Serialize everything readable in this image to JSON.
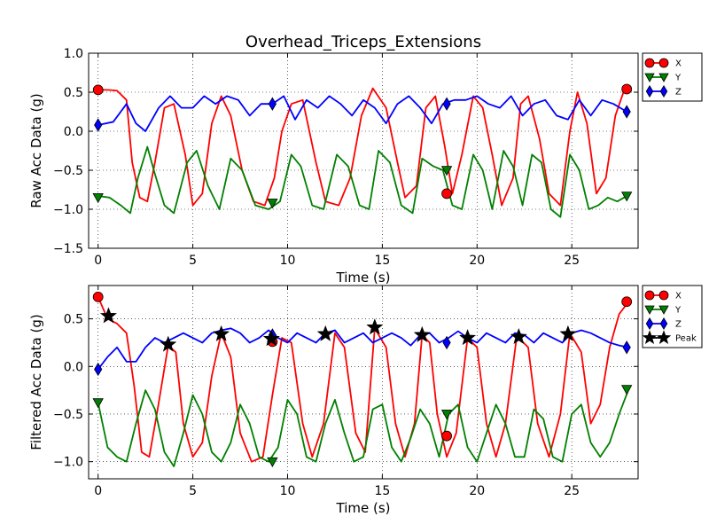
{
  "title": "Overhead_Triceps_Extensions",
  "colors": {
    "x": "#ff0000",
    "y": "#008000",
    "z": "#0000ff",
    "peak": "#000000"
  },
  "chart_data": [
    {
      "type": "line",
      "xlabel": "Time (s)",
      "ylabel": "Raw Acc Data (g)",
      "xlim": [
        -0.5,
        28.5
      ],
      "ylim": [
        -1.5,
        1.0
      ],
      "xticks": [
        0,
        5,
        10,
        15,
        20,
        25
      ],
      "yticks": [
        -1.5,
        -1.0,
        -0.5,
        0.0,
        0.5,
        1.0
      ],
      "xtick_labels": [
        "0",
        "5",
        "10",
        "15",
        "20",
        "25"
      ],
      "ytick_labels": [
        "−1.5",
        "−1.0",
        "−0.5",
        "0.0",
        "0.5",
        "1.0"
      ],
      "grid": true,
      "legend": {
        "placement": "outside-right-top",
        "entries": [
          "X",
          "Y",
          "Z"
        ]
      },
      "series": [
        {
          "name": "X",
          "color": "#ff0000",
          "marker": "circle",
          "x": [
            0,
            0.5,
            1.0,
            1.5,
            1.8,
            2.2,
            2.6,
            3.0,
            3.5,
            4.0,
            4.6,
            5.0,
            5.5,
            6.0,
            6.5,
            7.0,
            7.6,
            8.2,
            8.8,
            9.3,
            9.7,
            10.2,
            10.8,
            11.5,
            12.0,
            12.7,
            13.3,
            13.9,
            14.5,
            15.2,
            15.8,
            16.2,
            16.8,
            17.3,
            17.8,
            18.3,
            18.7,
            19.2,
            19.8,
            20.3,
            20.8,
            21.3,
            21.9,
            22.3,
            22.7,
            23.3,
            23.8,
            24.4,
            24.9,
            25.3,
            25.8,
            26.3,
            26.8,
            27.3,
            27.8,
            28.0
          ],
          "y": [
            0.53,
            0.53,
            0.52,
            0.4,
            -0.4,
            -0.85,
            -0.9,
            -0.4,
            0.3,
            0.35,
            -0.3,
            -0.95,
            -0.8,
            0.1,
            0.45,
            0.2,
            -0.5,
            -0.9,
            -0.95,
            -0.6,
            0.0,
            0.35,
            0.4,
            -0.4,
            -0.9,
            -0.95,
            -0.6,
            0.2,
            0.55,
            0.3,
            -0.4,
            -0.85,
            -0.7,
            0.3,
            0.45,
            -0.2,
            -0.8,
            -0.3,
            0.45,
            0.3,
            -0.3,
            -0.95,
            -0.6,
            0.35,
            0.45,
            -0.1,
            -0.8,
            -0.95,
            0.0,
            0.5,
            0.1,
            -0.8,
            -0.6,
            0.2,
            0.55,
            0.54
          ],
          "markers": [
            [
              0,
              0.53
            ],
            [
              18.4,
              -0.8
            ],
            [
              27.9,
              0.54
            ]
          ]
        },
        {
          "name": "Y",
          "color": "#008000",
          "marker": "triangle-down",
          "x": [
            0,
            0.6,
            1.2,
            1.7,
            2.1,
            2.6,
            3.0,
            3.5,
            4.0,
            4.7,
            5.2,
            5.8,
            6.4,
            7.0,
            7.6,
            8.3,
            9.0,
            9.6,
            10.2,
            10.7,
            11.3,
            11.9,
            12.6,
            13.2,
            13.8,
            14.3,
            14.8,
            15.4,
            16.0,
            16.6,
            17.1,
            17.7,
            18.2,
            18.7,
            19.2,
            19.8,
            20.3,
            20.8,
            21.4,
            21.9,
            22.4,
            22.9,
            23.4,
            23.9,
            24.4,
            24.9,
            25.4,
            25.9,
            26.4,
            26.9,
            27.4,
            27.9
          ],
          "y": [
            -0.83,
            -0.85,
            -0.95,
            -1.05,
            -0.6,
            -0.2,
            -0.55,
            -0.95,
            -1.05,
            -0.4,
            -0.25,
            -0.7,
            -1.0,
            -0.35,
            -0.5,
            -0.95,
            -1.0,
            -0.9,
            -0.3,
            -0.45,
            -0.95,
            -1.0,
            -0.3,
            -0.45,
            -0.95,
            -1.0,
            -0.25,
            -0.4,
            -0.95,
            -1.05,
            -0.35,
            -0.45,
            -0.5,
            -0.95,
            -1.0,
            -0.3,
            -0.5,
            -1.0,
            -0.25,
            -0.45,
            -0.95,
            -0.3,
            -0.4,
            -1.0,
            -1.1,
            -0.3,
            -0.5,
            -1.0,
            -0.95,
            -0.85,
            -0.9,
            -0.83
          ],
          "markers": [
            [
              0,
              -0.85
            ],
            [
              9.2,
              -0.92
            ],
            [
              18.4,
              -0.5
            ],
            [
              27.9,
              -0.83
            ]
          ]
        },
        {
          "name": "Z",
          "color": "#0000ff",
          "marker": "diamond",
          "x": [
            0,
            0.8,
            1.5,
            2.0,
            2.5,
            3.2,
            3.8,
            4.4,
            5.0,
            5.6,
            6.2,
            6.8,
            7.4,
            8.0,
            8.6,
            9.2,
            9.8,
            10.4,
            11.0,
            11.6,
            12.2,
            12.8,
            13.4,
            14.0,
            14.6,
            15.2,
            15.8,
            16.4,
            17.0,
            17.6,
            18.2,
            18.8,
            19.4,
            20.0,
            20.6,
            21.2,
            21.8,
            22.4,
            23.0,
            23.6,
            24.2,
            24.8,
            25.4,
            26.0,
            26.6,
            27.2,
            27.9
          ],
          "y": [
            0.08,
            0.12,
            0.35,
            0.1,
            0.0,
            0.3,
            0.45,
            0.3,
            0.3,
            0.45,
            0.35,
            0.45,
            0.4,
            0.2,
            0.35,
            0.35,
            0.45,
            0.15,
            0.4,
            0.3,
            0.45,
            0.35,
            0.2,
            0.4,
            0.3,
            0.1,
            0.35,
            0.45,
            0.3,
            0.1,
            0.35,
            0.4,
            0.4,
            0.45,
            0.35,
            0.3,
            0.45,
            0.2,
            0.35,
            0.4,
            0.2,
            0.15,
            0.4,
            0.2,
            0.4,
            0.35,
            0.25
          ],
          "markers": [
            [
              0,
              0.08
            ],
            [
              9.2,
              0.35
            ],
            [
              18.4,
              0.35
            ],
            [
              27.9,
              0.25
            ]
          ]
        }
      ]
    },
    {
      "type": "line",
      "xlabel": "Time (s)",
      "ylabel": "Filtered Acc Data (g)",
      "xlim": [
        -0.5,
        28.5
      ],
      "ylim": [
        -1.18,
        0.85
      ],
      "xticks": [
        0,
        5,
        10,
        15,
        20,
        25
      ],
      "yticks": [
        -1.0,
        -0.5,
        0.0,
        0.5
      ],
      "xtick_labels": [
        "0",
        "5",
        "10",
        "15",
        "20",
        "25"
      ],
      "ytick_labels": [
        "−1.0",
        "−0.5",
        "0.0",
        "0.5"
      ],
      "grid": true,
      "legend": {
        "placement": "outside-right-top",
        "entries": [
          "X",
          "Y",
          "Z",
          "Peak"
        ]
      },
      "series": [
        {
          "name": "X",
          "color": "#ff0000",
          "marker": "circle",
          "x": [
            0,
            0.5,
            1.0,
            1.5,
            1.9,
            2.3,
            2.7,
            3.1,
            3.7,
            4.1,
            4.5,
            5.0,
            5.5,
            6.0,
            6.5,
            7.0,
            7.5,
            8.1,
            8.7,
            9.2,
            9.7,
            10.2,
            10.8,
            11.3,
            11.9,
            12.5,
            13.0,
            13.6,
            14.1,
            14.6,
            15.2,
            15.7,
            16.2,
            16.7,
            17.1,
            17.5,
            17.9,
            18.4,
            18.9,
            19.5,
            20.0,
            20.5,
            21.0,
            21.5,
            22.1,
            22.7,
            23.2,
            23.8,
            24.4,
            24.9,
            25.5,
            26.0,
            26.5,
            27.0,
            27.5,
            28.0
          ],
          "y": [
            0.73,
            0.5,
            0.45,
            0.35,
            -0.2,
            -0.9,
            -0.95,
            -0.5,
            0.22,
            0.15,
            -0.6,
            -0.95,
            -0.8,
            -0.1,
            0.35,
            0.1,
            -0.7,
            -1.0,
            -0.95,
            -0.3,
            0.3,
            0.25,
            -0.6,
            -0.95,
            -0.6,
            0.35,
            0.2,
            -0.7,
            -0.9,
            0.4,
            0.2,
            -0.6,
            -0.95,
            -0.6,
            0.33,
            0.25,
            -0.5,
            -0.95,
            -0.7,
            0.3,
            0.2,
            -0.6,
            -0.95,
            -0.6,
            0.32,
            0.2,
            -0.6,
            -0.95,
            -0.5,
            0.35,
            0.15,
            -0.6,
            -0.4,
            0.2,
            0.55,
            0.68
          ],
          "markers": [
            [
              0,
              0.73
            ],
            [
              9.2,
              0.26
            ],
            [
              18.4,
              -0.73
            ],
            [
              27.9,
              0.68
            ]
          ]
        },
        {
          "name": "Y",
          "color": "#008000",
          "marker": "triangle-down",
          "x": [
            0,
            0.5,
            1.0,
            1.5,
            2.0,
            2.5,
            3.0,
            3.5,
            4.0,
            4.5,
            5.0,
            5.5,
            6.0,
            6.5,
            7.0,
            7.5,
            8.0,
            8.5,
            9.0,
            9.5,
            10.0,
            10.5,
            11.0,
            11.5,
            12.0,
            12.5,
            13.0,
            13.5,
            14.0,
            14.5,
            15.0,
            15.5,
            16.0,
            16.5,
            17.0,
            17.5,
            18.0,
            18.5,
            19.0,
            19.5,
            20.0,
            20.5,
            21.0,
            21.5,
            22.0,
            22.5,
            23.0,
            23.5,
            24.0,
            24.5,
            25.0,
            25.5,
            26.0,
            26.5,
            27.0,
            27.5,
            28.0
          ],
          "y": [
            -0.38,
            -0.85,
            -0.95,
            -1.0,
            -0.6,
            -0.25,
            -0.45,
            -0.9,
            -1.05,
            -0.7,
            -0.3,
            -0.5,
            -0.9,
            -1.0,
            -0.8,
            -0.4,
            -0.6,
            -0.95,
            -1.0,
            -0.85,
            -0.35,
            -0.5,
            -0.95,
            -1.0,
            -0.6,
            -0.35,
            -0.7,
            -1.0,
            -0.95,
            -0.45,
            -0.4,
            -0.85,
            -1.0,
            -0.75,
            -0.45,
            -0.6,
            -0.95,
            -0.5,
            -0.4,
            -0.85,
            -1.0,
            -0.7,
            -0.4,
            -0.6,
            -0.95,
            -0.95,
            -0.45,
            -0.55,
            -0.95,
            -1.0,
            -0.5,
            -0.4,
            -0.8,
            -0.95,
            -0.8,
            -0.5,
            -0.24
          ],
          "markers": [
            [
              0,
              -0.38
            ],
            [
              9.2,
              -1.0
            ],
            [
              18.4,
              -0.5
            ],
            [
              27.9,
              -0.24
            ]
          ]
        },
        {
          "name": "Z",
          "color": "#0000ff",
          "marker": "diamond",
          "x": [
            0,
            0.5,
            1.0,
            1.5,
            2.0,
            2.5,
            3.0,
            3.5,
            4.0,
            4.5,
            5.0,
            5.5,
            6.0,
            6.5,
            7.0,
            7.5,
            8.0,
            8.5,
            9.0,
            9.5,
            10.0,
            10.5,
            11.0,
            11.5,
            12.0,
            12.5,
            13.0,
            13.5,
            14.0,
            14.5,
            15.0,
            15.5,
            16.0,
            16.5,
            17.0,
            17.5,
            18.0,
            18.5,
            19.0,
            19.5,
            20.0,
            20.5,
            21.0,
            21.5,
            22.0,
            22.5,
            23.0,
            23.5,
            24.0,
            24.5,
            25.0,
            25.5,
            26.0,
            26.5,
            27.0,
            27.5,
            28.0
          ],
          "y": [
            -0.03,
            0.1,
            0.2,
            0.05,
            0.05,
            0.2,
            0.3,
            0.25,
            0.3,
            0.35,
            0.3,
            0.25,
            0.35,
            0.38,
            0.4,
            0.35,
            0.25,
            0.3,
            0.38,
            0.3,
            0.25,
            0.35,
            0.3,
            0.25,
            0.35,
            0.38,
            0.25,
            0.3,
            0.35,
            0.25,
            0.3,
            0.35,
            0.3,
            0.22,
            0.33,
            0.35,
            0.25,
            0.3,
            0.37,
            0.3,
            0.25,
            0.35,
            0.3,
            0.25,
            0.35,
            0.33,
            0.25,
            0.35,
            0.3,
            0.25,
            0.35,
            0.38,
            0.35,
            0.3,
            0.25,
            0.22,
            0.2
          ],
          "markers": [
            [
              0,
              -0.03
            ],
            [
              9.2,
              0.33
            ],
            [
              18.4,
              0.25
            ],
            [
              27.9,
              0.2
            ]
          ]
        },
        {
          "name": "Peak",
          "color": "#000000",
          "marker": "star",
          "x": [
            0.55,
            3.7,
            6.5,
            9.15,
            12.0,
            14.6,
            17.1,
            19.5,
            22.2,
            24.8
          ],
          "y": [
            0.53,
            0.23,
            0.34,
            0.29,
            0.34,
            0.41,
            0.33,
            0.3,
            0.31,
            0.34
          ]
        }
      ]
    }
  ]
}
